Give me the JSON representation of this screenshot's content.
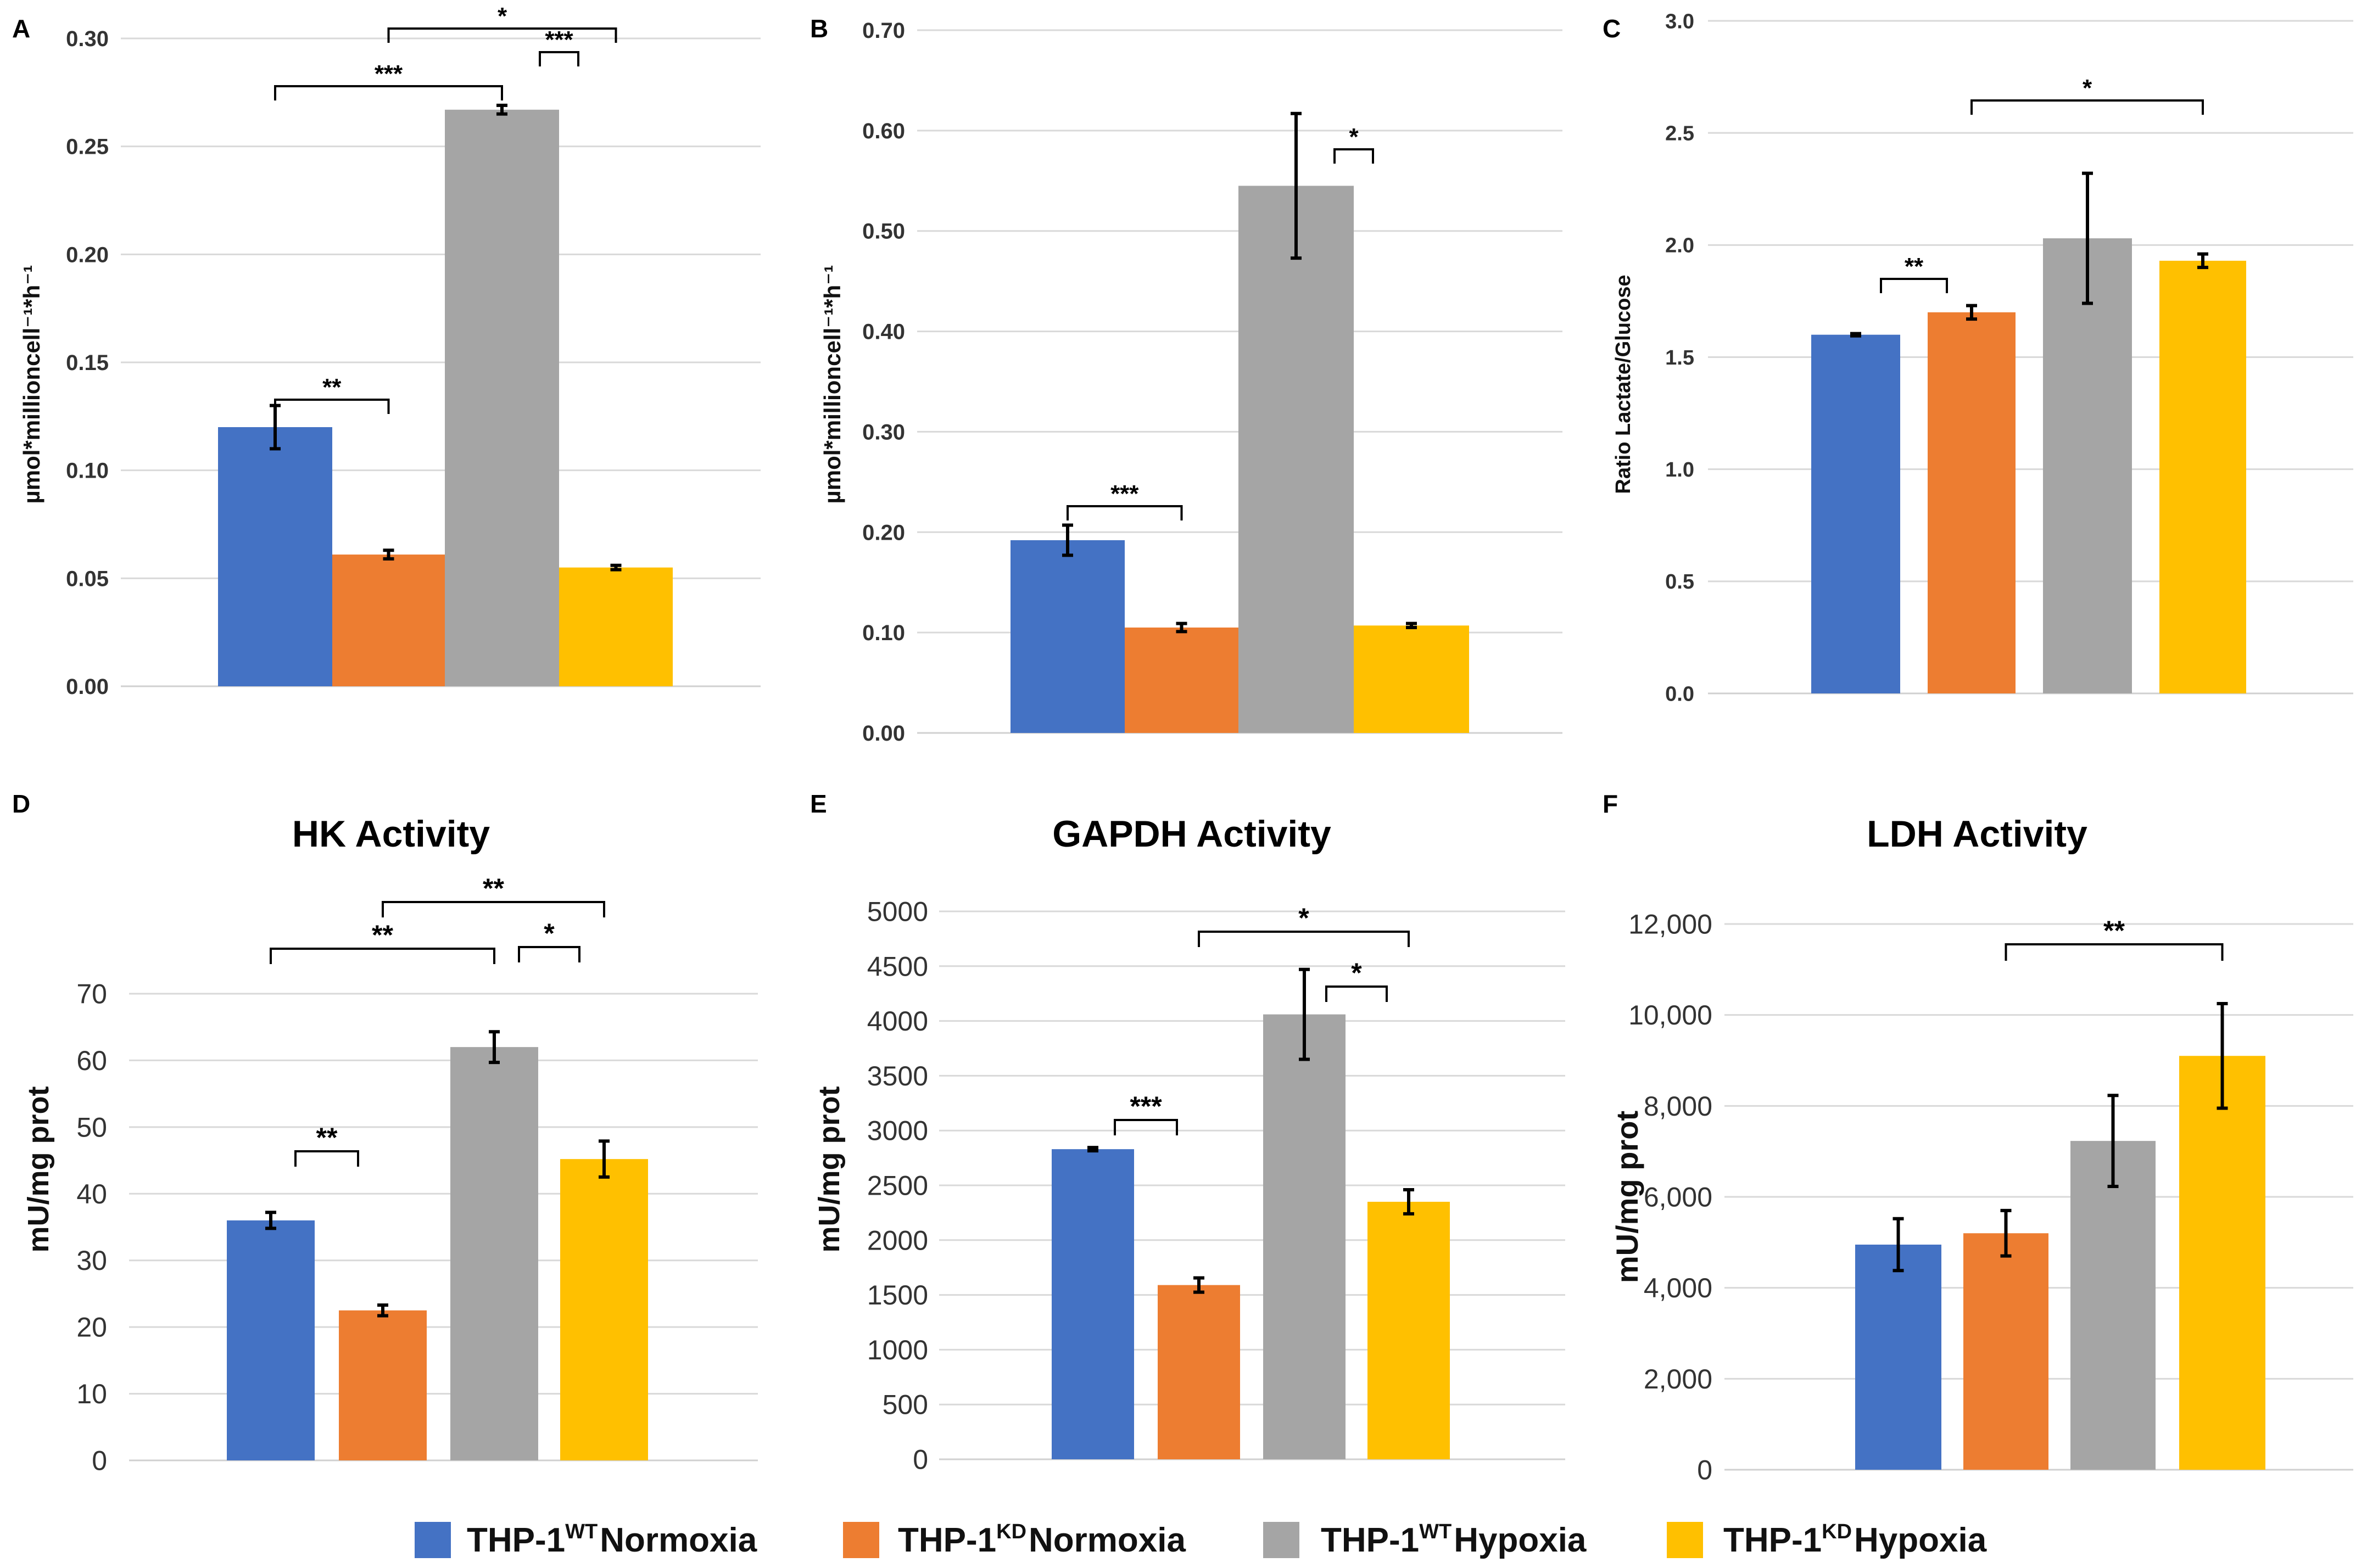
{
  "colors": {
    "wt_normoxia": "#4472C4",
    "kd_normoxia": "#ED7D31",
    "wt_hypoxia": "#A5A5A5",
    "kd_hypoxia": "#FFC000"
  },
  "legend": [
    {
      "base": "THP-1",
      "sup": "WT",
      "label": "Normoxia",
      "color": "#4472C4"
    },
    {
      "base": "THP-1",
      "sup": "KD",
      "label": "Normoxia",
      "color": "#ED7D31"
    },
    {
      "base": "THP-1",
      "sup": "WT",
      "label": "Hypoxia",
      "color": "#A5A5A5"
    },
    {
      "base": "THP-1",
      "sup": "KD",
      "label": "Hypoxia",
      "color": "#FFC000"
    }
  ],
  "chart_data": [
    {
      "panel": "A",
      "type": "bar",
      "title": "",
      "ylabel": "µmol*millioncell⁻¹*h⁻¹",
      "ylim": [
        0,
        0.3
      ],
      "ticks": [
        "0.00",
        "0.05",
        "0.10",
        "0.15",
        "0.20",
        "0.25",
        "0.30"
      ],
      "categories": [
        "THP-1WT Normoxia",
        "THP-1KD Normoxia",
        "THP-1WT Hypoxia",
        "THP-1KD Hypoxia"
      ],
      "values": [
        0.12,
        0.061,
        0.267,
        0.055
      ],
      "errors": [
        0.01,
        0.002,
        0.002,
        0.001
      ],
      "significance": [
        {
          "from": 0,
          "to": 1,
          "label": "**"
        },
        {
          "from": 0,
          "to": 2,
          "label": "***"
        },
        {
          "from": 2,
          "to": 3,
          "label": "***"
        },
        {
          "from": 1,
          "to": 3,
          "label": "*"
        }
      ]
    },
    {
      "panel": "B",
      "type": "bar",
      "title": "",
      "ylabel": "µmol*millioncell⁻¹*h⁻¹",
      "ylim": [
        0,
        0.7
      ],
      "ticks": [
        "0.00",
        "0.10",
        "0.20",
        "0.30",
        "0.40",
        "0.50",
        "0.60",
        "0.70"
      ],
      "categories": [
        "THP-1WT Normoxia",
        "THP-1KD Normoxia",
        "THP-1WT Hypoxia",
        "THP-1KD Hypoxia"
      ],
      "values": [
        0.192,
        0.105,
        0.545,
        0.107
      ],
      "errors": [
        0.015,
        0.004,
        0.072,
        0.002
      ],
      "significance": [
        {
          "from": 0,
          "to": 1,
          "label": "***"
        },
        {
          "from": 2,
          "to": 3,
          "label": "*"
        }
      ]
    },
    {
      "panel": "C",
      "type": "bar",
      "title": "",
      "ylabel": "Ratio Lactate/Glucose",
      "ylim": [
        0,
        3.0
      ],
      "ticks": [
        "0.0",
        "0.5",
        "1.0",
        "1.5",
        "2.0",
        "2.5",
        "3.0"
      ],
      "categories": [
        "THP-1WT Normoxia",
        "THP-1KD Normoxia",
        "THP-1WT Hypoxia",
        "THP-1KD Hypoxia"
      ],
      "values": [
        1.6,
        1.7,
        2.03,
        1.93
      ],
      "errors": [
        0.005,
        0.03,
        0.29,
        0.03
      ],
      "significance": [
        {
          "from": 0,
          "to": 1,
          "label": "**"
        },
        {
          "from": 1,
          "to": 3,
          "label": "*"
        }
      ]
    },
    {
      "panel": "D",
      "type": "bar",
      "title": "HK Activity",
      "ylabel": "mU/mg prot",
      "ylim": [
        0,
        70
      ],
      "ticks": [
        "0",
        "10",
        "20",
        "30",
        "40",
        "50",
        "60",
        "70"
      ],
      "categories": [
        "THP-1WT Normoxia",
        "THP-1KD Normoxia",
        "THP-1WT Hypoxia",
        "THP-1KD Hypoxia"
      ],
      "values": [
        36,
        22.5,
        62,
        45.2
      ],
      "errors": [
        1.2,
        0.8,
        2.3,
        2.7
      ],
      "significance": [
        {
          "from": 0,
          "to": 1,
          "label": "**"
        },
        {
          "from": 0,
          "to": 2,
          "label": "**"
        },
        {
          "from": 2,
          "to": 3,
          "label": "*"
        },
        {
          "from": 1,
          "to": 3,
          "label": "**"
        }
      ]
    },
    {
      "panel": "E",
      "type": "bar",
      "title": "GAPDH Activity",
      "ylabel": "mU/mg prot",
      "ylim": [
        0,
        5000
      ],
      "ticks": [
        "0",
        "500",
        "1000",
        "1500",
        "2000",
        "2500",
        "3000",
        "3500",
        "4000",
        "4500",
        "5000"
      ],
      "categories": [
        "THP-1WT Normoxia",
        "THP-1KD Normoxia",
        "THP-1WT Hypoxia",
        "THP-1KD Hypoxia"
      ],
      "values": [
        2830,
        1590,
        4060,
        2350
      ],
      "errors": [
        15,
        65,
        410,
        110
      ],
      "significance": [
        {
          "from": 0,
          "to": 1,
          "label": "***"
        },
        {
          "from": 2,
          "to": 3,
          "label": "*"
        },
        {
          "from": 1,
          "to": 3,
          "label": "*"
        }
      ]
    },
    {
      "panel": "F",
      "type": "bar",
      "title": "LDH Activity",
      "ylabel": "mU/mg prot",
      "ylim": [
        0,
        12000
      ],
      "ticks": [
        "0",
        "2,000",
        "4,000",
        "6,000",
        "8,000",
        "10,000",
        "12,000"
      ],
      "categories": [
        "THP-1WT Normoxia",
        "THP-1KD Normoxia",
        "THP-1WT Hypoxia",
        "THP-1KD Hypoxia"
      ],
      "values": [
        4950,
        5200,
        7230,
        9100
      ],
      "errors": [
        570,
        500,
        1000,
        1150
      ],
      "significance": [
        {
          "from": 1,
          "to": 3,
          "label": "**"
        }
      ]
    }
  ]
}
